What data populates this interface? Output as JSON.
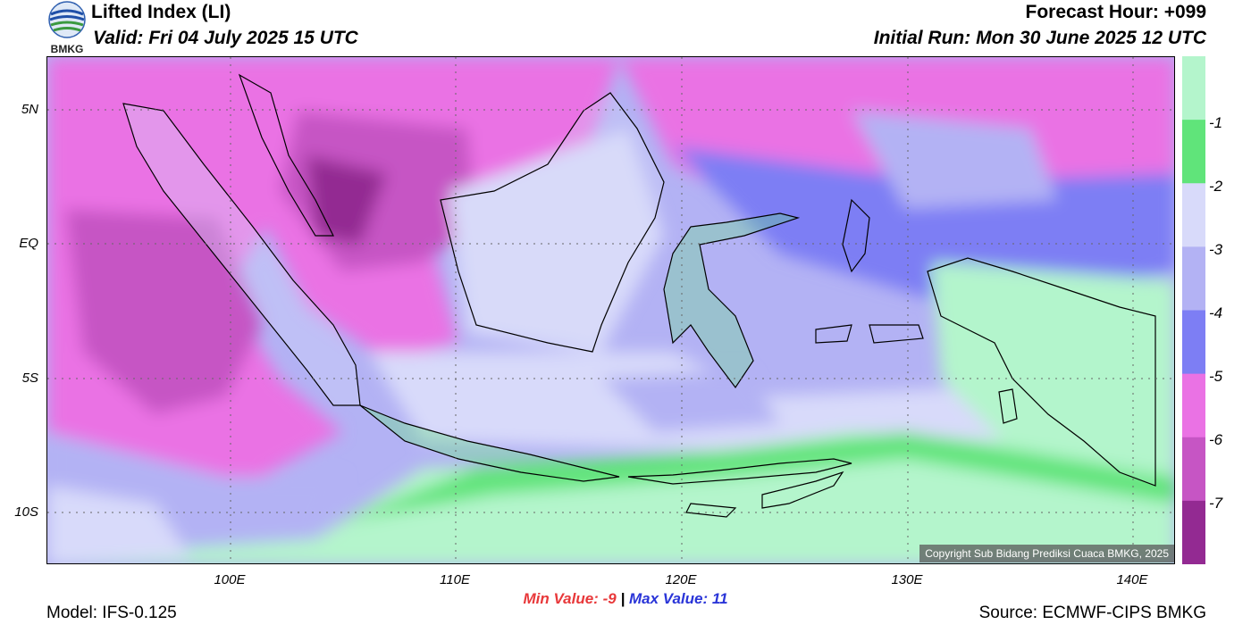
{
  "header": {
    "title": "Lifted Index (LI)",
    "valid": "Valid: Fri 04 July 2025 15 UTC",
    "forecast_hour": "Forecast Hour: +099",
    "initial_run": "Initial Run: Mon 30 June 2025 12 UTC",
    "logo_text": "BMKG"
  },
  "map": {
    "lat_labels": [
      "5N",
      "EQ",
      "5S",
      "10S"
    ],
    "lon_labels": [
      "100E",
      "110E",
      "120E",
      "130E",
      "140E"
    ],
    "copyright": "Copyright Sub Bidang Prediksi Cuaca BMKG, 2025"
  },
  "legend": {
    "labels": [
      "-1",
      "-2",
      "-3",
      "-4",
      "-5",
      "-6",
      "-7"
    ],
    "colors": [
      "#b4f5cc",
      "#60e47a",
      "#d8dafa",
      "#b3b2f4",
      "#7d7ef4",
      "#ea72e4",
      "#c655c4",
      "#932a92"
    ]
  },
  "stats": {
    "min_label": "Min Value:",
    "min_value": "-9",
    "separator": "|",
    "max_label": "Max Value:",
    "max_value": "11"
  },
  "footer": {
    "model": "Model: IFS-0.125",
    "source": "Source: ECMWF-CIPS BMKG"
  }
}
